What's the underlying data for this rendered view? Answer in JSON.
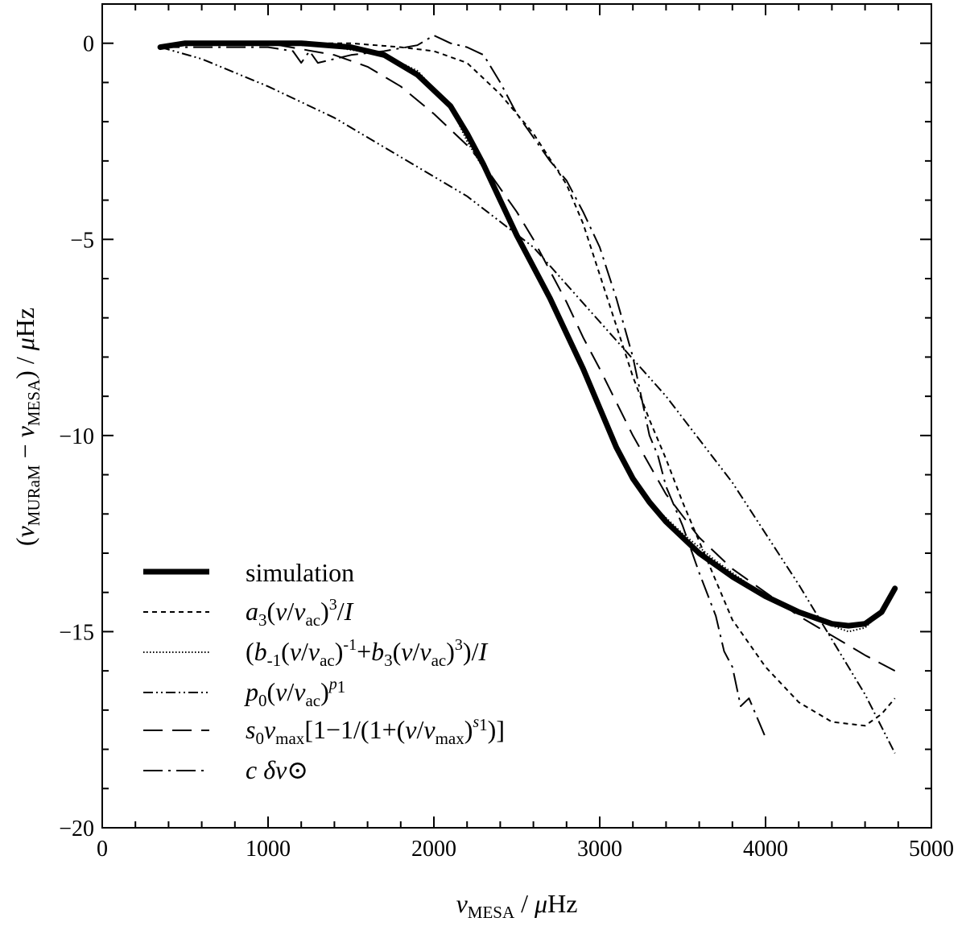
{
  "chart_data": {
    "type": "line",
    "title": "",
    "xlabel": "ν_MESA / μHz",
    "ylabel": "(ν_MURaM − ν_MESA) / μHz",
    "xlim": [
      0,
      5000
    ],
    "ylim": [
      -20,
      1
    ],
    "grid": false,
    "legend_position": "bottom-left",
    "x_ticks": [
      0,
      1000,
      2000,
      3000,
      4000,
      5000
    ],
    "x_tick_labels": [
      "0",
      "1000",
      "2000",
      "3000",
      "4000",
      "5000"
    ],
    "y_ticks": [
      0,
      -5,
      -10,
      -15,
      -20
    ],
    "y_tick_labels": [
      "0",
      "−5",
      "−10",
      "−15",
      "−20"
    ],
    "series": [
      {
        "name": "simulation",
        "legend_text": "simulation",
        "style": "thick",
        "x": [
          350,
          500,
          800,
          1200,
          1500,
          1700,
          1900,
          2100,
          2200,
          2300,
          2400,
          2500,
          2600,
          2700,
          2800,
          2900,
          3000,
          3100,
          3200,
          3300,
          3400,
          3500,
          3600,
          3800,
          4000,
          4200,
          4400,
          4500,
          4600,
          4700,
          4780
        ],
        "y": [
          -0.1,
          0.0,
          0.0,
          0.0,
          -0.1,
          -0.3,
          -0.8,
          -1.6,
          -2.3,
          -3.1,
          -4.0,
          -4.9,
          -5.7,
          -6.5,
          -7.4,
          -8.3,
          -9.3,
          -10.3,
          -11.1,
          -11.7,
          -12.2,
          -12.6,
          -13.0,
          -13.6,
          -14.1,
          -14.5,
          -14.8,
          -14.85,
          -14.8,
          -14.5,
          -13.9
        ]
      },
      {
        "name": "a3",
        "legend_text": "a3(ν/νac)^3/I",
        "style": "short-dash",
        "x": [
          350,
          600,
          1000,
          1500,
          1800,
          2000,
          2200,
          2400,
          2600,
          2800,
          2900,
          3000,
          3100,
          3200,
          3300,
          3400,
          3500,
          3600,
          3700,
          3800,
          3900,
          4000,
          4200,
          4400,
          4600,
          4700,
          4780
        ],
        "y": [
          -0.05,
          0.0,
          0.0,
          0.0,
          -0.1,
          -0.2,
          -0.5,
          -1.3,
          -2.3,
          -3.6,
          -4.6,
          -5.9,
          -7.2,
          -8.5,
          -9.6,
          -10.6,
          -11.7,
          -12.7,
          -13.7,
          -14.7,
          -15.3,
          -15.9,
          -16.8,
          -17.3,
          -17.4,
          -17.1,
          -16.7
        ]
      },
      {
        "name": "b",
        "legend_text": "(b-1(ν/νac)^-1+b3(ν/νac)^3)/I",
        "style": "dotted",
        "x": [
          350,
          600,
          1000,
          1400,
          1700,
          1900,
          2100,
          2200,
          2300,
          2400,
          2500,
          2600,
          2700,
          2800,
          2900,
          3000,
          3100,
          3200,
          3300,
          3500,
          3700,
          3900,
          4100,
          4300,
          4500,
          4600,
          4700,
          4780
        ],
        "y": [
          -0.05,
          0.0,
          0.0,
          -0.1,
          -0.3,
          -0.7,
          -1.6,
          -2.5,
          -3.2,
          -4.1,
          -5.0,
          -5.8,
          -6.6,
          -7.4,
          -8.2,
          -9.2,
          -10.2,
          -11.1,
          -11.7,
          -12.5,
          -13.2,
          -13.8,
          -14.3,
          -14.7,
          -15.0,
          -14.9,
          -14.5,
          -13.9
        ]
      },
      {
        "name": "p",
        "legend_text": "p0(ν/νac)^p1",
        "style": "dash-dot-dot",
        "x": [
          350,
          600,
          1000,
          1400,
          1800,
          2200,
          2600,
          3000,
          3400,
          3800,
          4200,
          4600,
          4780
        ],
        "y": [
          -0.1,
          -0.4,
          -1.1,
          -1.9,
          -2.9,
          -3.9,
          -5.2,
          -7.1,
          -9.0,
          -11.2,
          -13.8,
          -16.6,
          -18.1
        ]
      },
      {
        "name": "s",
        "legend_text": "s0νmax[1−1/(1+(ν/νmax)^s1)]",
        "style": "long-dash",
        "x": [
          350,
          600,
          1000,
          1400,
          1600,
          1800,
          2000,
          2200,
          2300,
          2400,
          2500,
          2600,
          2700,
          2800,
          2900,
          3000,
          3200,
          3400,
          3600,
          3800,
          4000,
          4200,
          4400,
          4600,
          4780
        ],
        "y": [
          -0.1,
          0.0,
          0.0,
          -0.3,
          -0.6,
          -1.1,
          -1.8,
          -2.6,
          -3.1,
          -3.7,
          -4.3,
          -5.0,
          -5.8,
          -6.6,
          -7.5,
          -8.3,
          -10.0,
          -11.5,
          -12.6,
          -13.4,
          -14.0,
          -14.6,
          -15.1,
          -15.6,
          -16.0
        ]
      },
      {
        "name": "c",
        "legend_text": "c δν⊙",
        "style": "dash-dot",
        "x": [
          350,
          1000,
          1150,
          1200,
          1250,
          1300,
          1500,
          1700,
          1900,
          2000,
          2050,
          2100,
          2200,
          2300,
          2400,
          2500,
          2600,
          2700,
          2800,
          2900,
          3000,
          3100,
          3200,
          3250,
          3300,
          3350,
          3400,
          3500,
          3600,
          3700,
          3750,
          3800,
          3850,
          3900,
          3950,
          4000
        ],
        "y": [
          -0.1,
          -0.1,
          -0.2,
          -0.5,
          -0.2,
          -0.5,
          -0.3,
          -0.2,
          -0.05,
          0.2,
          0.1,
          0.0,
          -0.1,
          -0.3,
          -1.0,
          -1.8,
          -2.4,
          -3.0,
          -3.5,
          -4.3,
          -5.2,
          -6.5,
          -8.0,
          -9.0,
          -10.0,
          -10.5,
          -11.3,
          -12.3,
          -13.5,
          -14.6,
          -15.5,
          -15.9,
          -16.9,
          -16.7,
          -17.2,
          -17.7
        ]
      }
    ]
  }
}
